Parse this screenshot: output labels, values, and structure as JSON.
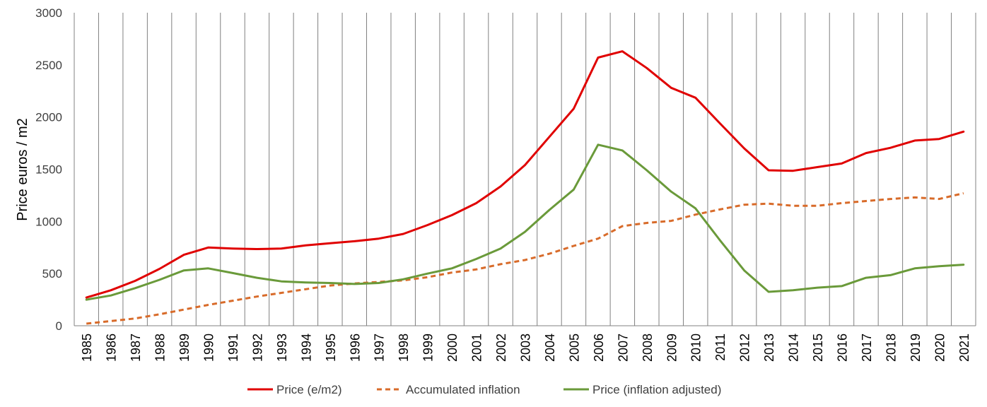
{
  "chart_data": {
    "type": "line",
    "title": "",
    "xlabel": "",
    "ylabel": "Price euros / m2",
    "ylim": [
      0,
      3000
    ],
    "yticks": [
      "0",
      "500",
      "1000",
      "1500",
      "2000",
      "2500",
      "3000"
    ],
    "grid": "vertical",
    "legend_position": "bottom",
    "categories": [
      "1985",
      "1986",
      "1987",
      "1988",
      "1989",
      "1990",
      "1991",
      "1992",
      "1993",
      "1994",
      "1995",
      "1996",
      "1997",
      "1998",
      "1999",
      "2000",
      "2001",
      "2002",
      "2003",
      "2004",
      "2005",
      "2006",
      "2007",
      "2008",
      "2009",
      "2010",
      "2011",
      "2012",
      "2013",
      "2014",
      "2015",
      "2016",
      "2017",
      "2018",
      "2019",
      "2020",
      "2021"
    ],
    "series": [
      {
        "name": "Price (e/m2)",
        "color": "#e00000",
        "style": "solid",
        "values": [
          270,
          340,
          430,
          545,
          680,
          750,
          740,
          735,
          740,
          770,
          790,
          810,
          835,
          880,
          965,
          1060,
          1175,
          1335,
          1540,
          1810,
          2080,
          2570,
          2630,
          2470,
          2280,
          2185,
          1940,
          1700,
          1490,
          1485,
          1520,
          1555,
          1655,
          1705,
          1775,
          1790,
          1860
        ]
      },
      {
        "name": "Accumulated inflation",
        "color": "#d86b2a",
        "style": "dashed",
        "values": [
          20,
          45,
          70,
          110,
          155,
          200,
          240,
          280,
          315,
          350,
          385,
          405,
          420,
          435,
          465,
          510,
          540,
          590,
          630,
          690,
          765,
          835,
          955,
          985,
          1005,
          1065,
          1115,
          1160,
          1170,
          1150,
          1150,
          1175,
          1195,
          1215,
          1230,
          1215,
          1270
        ]
      },
      {
        "name": "Price (inflation adjusted)",
        "color": "#6a9a3a",
        "style": "solid",
        "values": [
          250,
          290,
          360,
          440,
          530,
          550,
          505,
          460,
          425,
          415,
          410,
          400,
          410,
          445,
          500,
          550,
          640,
          740,
          900,
          1110,
          1305,
          1735,
          1680,
          1490,
          1285,
          1125,
          820,
          530,
          325,
          340,
          365,
          380,
          460,
          485,
          550,
          570,
          585
        ]
      }
    ]
  }
}
